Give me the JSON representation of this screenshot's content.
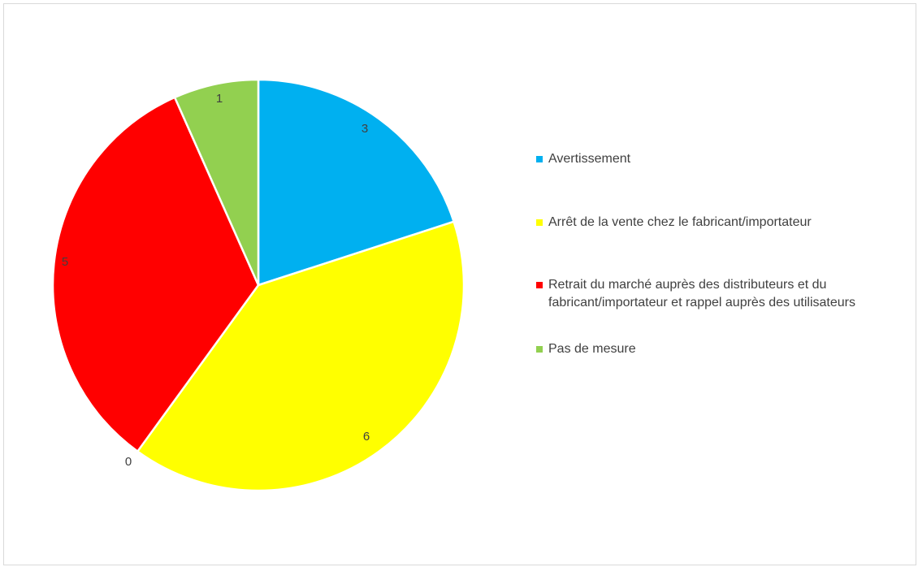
{
  "chart_data": {
    "type": "pie",
    "categories": [
      "Avertissement",
      "Arrêt de la vente chez le fabricant/importateur",
      "",
      "Retrait du marché auprès des distributeurs et du fabricant/importateur et rappel auprès des utilisateurs",
      "Pas de mesure"
    ],
    "values": [
      3,
      6,
      0,
      5,
      1
    ],
    "colors": [
      "#00b0f0",
      "#ffff00",
      "#ffffff",
      "#ff0000",
      "#92d050"
    ],
    "data_labels": [
      "3",
      "6",
      "0",
      "5",
      "1"
    ],
    "legend": {
      "placement": "right",
      "items": [
        {
          "label": "Avertissement",
          "color": "#00b0f0"
        },
        {
          "label": "Arrêt de la vente chez le fabricant/importateur",
          "color": "#ffff00"
        },
        {
          "label": "Retrait du marché auprès des distributeurs et du fabricant/importateur et rappel auprès des utilisateurs",
          "color": "#ff0000"
        },
        {
          "label": "Pas de mesure",
          "color": "#92d050"
        }
      ]
    }
  }
}
